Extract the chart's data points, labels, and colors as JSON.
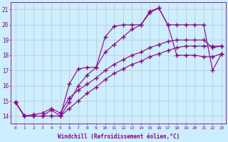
{
  "xlabel": "Windchill (Refroidissement éolien,°C)",
  "background_color": "#cceeff",
  "grid_color": "#bbbbbb",
  "line_color": "#880088",
  "xlim": [
    -0.5,
    23.5
  ],
  "ylim": [
    13.5,
    21.5
  ],
  "xticks": [
    0,
    1,
    2,
    3,
    4,
    5,
    6,
    7,
    8,
    9,
    10,
    11,
    12,
    13,
    14,
    15,
    16,
    17,
    18,
    19,
    20,
    21,
    22,
    23
  ],
  "yticks": [
    14,
    15,
    16,
    17,
    18,
    19,
    20,
    21
  ],
  "series": [
    {
      "x": [
        0,
        1,
        2,
        3,
        4,
        5,
        6,
        7,
        8,
        9,
        10,
        11,
        12,
        13,
        14,
        15,
        16,
        17,
        18,
        19,
        20,
        21,
        22,
        23
      ],
      "y": [
        14.9,
        14.0,
        14.0,
        14.0,
        14.0,
        14.0,
        16.1,
        17.1,
        17.2,
        17.2,
        19.2,
        19.9,
        20.0,
        20.0,
        20.0,
        20.9,
        21.1,
        20.0,
        20.0,
        20.0,
        20.0,
        20.0,
        17.0,
        18.1
      ]
    },
    {
      "x": [
        0,
        1,
        2,
        3,
        4,
        5,
        6,
        7,
        8,
        9,
        10,
        11,
        12,
        13,
        14,
        15,
        16,
        17,
        18,
        19,
        20,
        21,
        22,
        23
      ],
      "y": [
        14.9,
        14.0,
        14.0,
        14.0,
        14.4,
        14.0,
        14.9,
        16.0,
        16.7,
        17.2,
        18.2,
        18.7,
        19.2,
        19.7,
        20.0,
        20.8,
        21.1,
        20.0,
        18.0,
        18.0,
        18.0,
        17.9,
        17.9,
        18.1
      ]
    },
    {
      "x": [
        0,
        1,
        2,
        3,
        4,
        5,
        6,
        7,
        8,
        9,
        10,
        11,
        12,
        13,
        14,
        15,
        16,
        17,
        18,
        19,
        20,
        21,
        22,
        23
      ],
      "y": [
        14.9,
        14.0,
        14.0,
        14.0,
        14.0,
        14.0,
        14.5,
        15.0,
        15.5,
        15.9,
        16.4,
        16.8,
        17.1,
        17.4,
        17.6,
        17.9,
        18.1,
        18.3,
        18.5,
        18.6,
        18.6,
        18.6,
        18.6,
        18.6
      ]
    },
    {
      "x": [
        0,
        1,
        2,
        3,
        4,
        5,
        6,
        7,
        8,
        9,
        10,
        11,
        12,
        13,
        14,
        15,
        16,
        17,
        18,
        19,
        20,
        21,
        22,
        23
      ],
      "y": [
        14.9,
        14.0,
        14.1,
        14.2,
        14.5,
        14.2,
        15.2,
        15.7,
        16.1,
        16.5,
        17.0,
        17.4,
        17.7,
        18.0,
        18.2,
        18.5,
        18.7,
        18.9,
        19.0,
        19.0,
        19.0,
        19.0,
        18.5,
        18.6
      ]
    }
  ]
}
